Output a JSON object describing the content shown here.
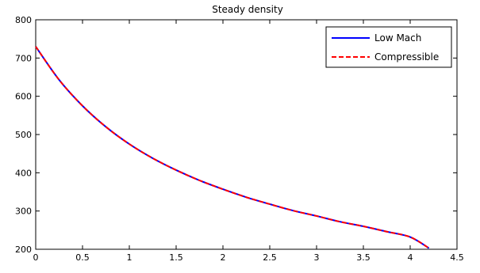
{
  "chart_data": {
    "type": "line",
    "title": "Steady density",
    "xlabel": "",
    "ylabel": "",
    "xlim": [
      0,
      4.5
    ],
    "ylim": [
      200,
      800
    ],
    "xticks": [
      "0",
      "0.5",
      "1",
      "1.5",
      "2",
      "2.5",
      "3",
      "3.5",
      "4",
      "4.5"
    ],
    "yticks": [
      "200",
      "300",
      "400",
      "500",
      "600",
      "700",
      "800"
    ],
    "grid": false,
    "legend_position": "top-right",
    "x": [
      0,
      0.25,
      0.5,
      0.75,
      1.0,
      1.25,
      1.5,
      1.75,
      2.0,
      2.25,
      2.5,
      2.75,
      3.0,
      3.25,
      3.5,
      3.75,
      4.0,
      4.2
    ],
    "series": [
      {
        "name": "Low Mach",
        "color": "#0000ff",
        "dash": "solid",
        "values": [
          730,
          643,
          575,
          520,
          475,
          438,
          407,
          380,
          357,
          336,
          318,
          301,
          287,
          272,
          260,
          246,
          232,
          203
        ]
      },
      {
        "name": "Compressible",
        "color": "#ff0000",
        "dash": "dashed",
        "values": [
          730,
          643,
          575,
          520,
          475,
          438,
          407,
          380,
          357,
          336,
          318,
          301,
          287,
          272,
          260,
          246,
          232,
          203
        ]
      }
    ]
  }
}
